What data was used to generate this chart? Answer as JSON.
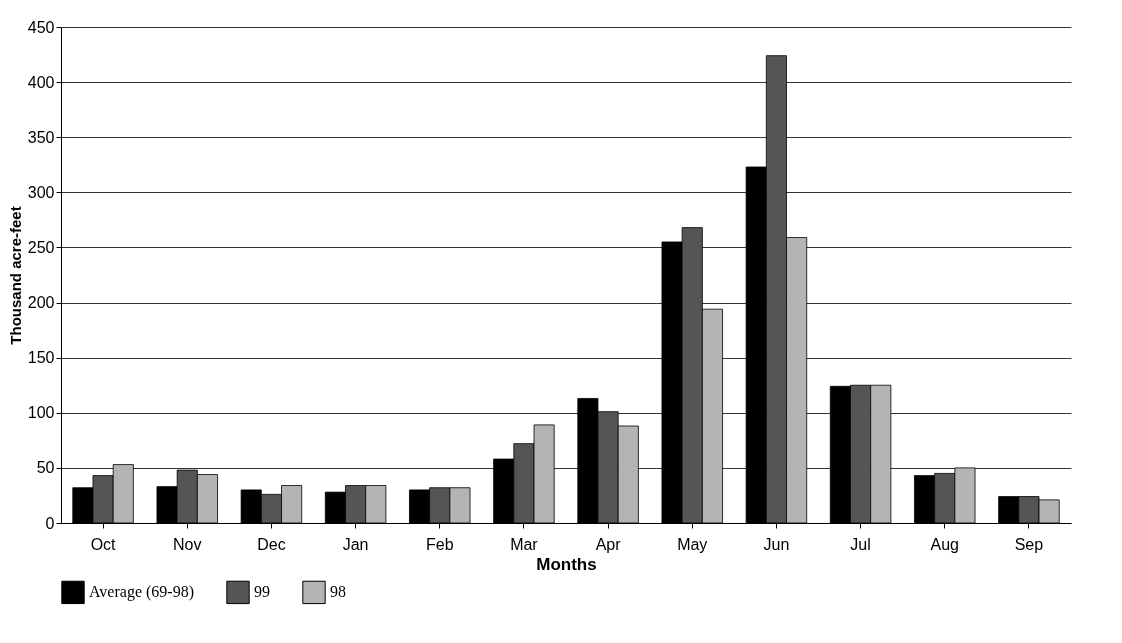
{
  "chart_data": {
    "type": "bar",
    "xlabel": "Months",
    "ylabel": "Thousand acre-feet",
    "categories": [
      "Oct",
      "Nov",
      "Dec",
      "Jan",
      "Feb",
      "Mar",
      "Apr",
      "May",
      "Jun",
      "Jul",
      "Aug",
      "Sep"
    ],
    "series": [
      {
        "name": "Average (69-98)",
        "color": "#000000",
        "values": [
          32,
          33,
          30,
          28,
          30,
          58,
          113,
          255,
          323,
          124,
          43,
          24
        ]
      },
      {
        "name": "99",
        "color": "#555555",
        "values": [
          43,
          48,
          26,
          34,
          32,
          72,
          101,
          268,
          424,
          125,
          45,
          24
        ]
      },
      {
        "name": "98",
        "color": "#b4b4b4",
        "values": [
          53,
          44,
          34,
          34,
          32,
          89,
          88,
          194,
          259,
          125,
          50,
          21
        ]
      }
    ],
    "ylim": [
      0,
      450
    ],
    "yticks": [
      0,
      50,
      100,
      150,
      200,
      250,
      300,
      350,
      400,
      450
    ],
    "grid": "y",
    "legend": "bottom"
  }
}
